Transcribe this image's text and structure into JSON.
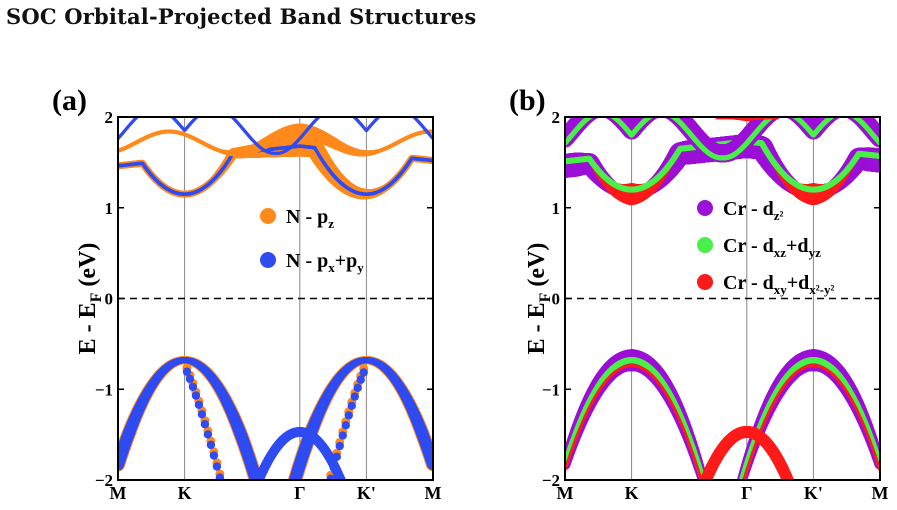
{
  "page": {
    "title": "SOC Orbital-Projected Band Structures"
  },
  "colors": {
    "orange": "#ff8a1c",
    "blue": "#2f4bf2",
    "purple": "#9c0fd6",
    "green": "#49f049",
    "red": "#ff1a1a"
  },
  "chart_data": [
    {
      "type": "scatter",
      "panel_label": "(a)",
      "xlabel": "",
      "ylabel": "E - E_F (eV)",
      "ylim": [
        -2,
        2
      ],
      "yticks": [
        "−2",
        "−1",
        "0",
        "1",
        "2"
      ],
      "kpoints": [
        "M",
        "K",
        "Γ",
        "K'",
        "M"
      ],
      "kpoint_positions": [
        0,
        1,
        2.73,
        3.73,
        4.73
      ],
      "fermi_level": 0,
      "legend_position": "center-right",
      "series": [
        {
          "name_main": "N - p",
          "name_sub": "z",
          "name_rest": "",
          "name_rest_sub": "",
          "color": "#ff8a1c"
        },
        {
          "name_main": "N - p",
          "name_sub": "x",
          "name_rest": "+p",
          "name_rest_sub": "y",
          "color": "#2f4bf2"
        }
      ]
    },
    {
      "type": "scatter",
      "panel_label": "(b)",
      "xlabel": "",
      "ylabel": "E - E_F (eV)",
      "ylim": [
        -2,
        2
      ],
      "yticks": [
        "−2",
        "−1",
        "0",
        "1",
        "2"
      ],
      "kpoints": [
        "M",
        "K",
        "Γ",
        "K'",
        "M"
      ],
      "kpoint_positions": [
        0,
        1,
        2.73,
        3.73,
        4.73
      ],
      "fermi_level": 0,
      "legend_position": "center-right",
      "series": [
        {
          "name_main": "Cr - d",
          "name_sub": "z²",
          "name_rest": "",
          "name_rest_sub": "",
          "color": "#9c0fd6"
        },
        {
          "name_main": "Cr - d",
          "name_sub": "xz",
          "name_rest": "+d",
          "name_rest_sub": "yz",
          "color": "#49f049"
        },
        {
          "name_main": "Cr - d",
          "name_sub": "xy",
          "name_rest": "+d",
          "name_rest_sub": "x²-y²",
          "color": "#ff1a1a"
        }
      ]
    }
  ]
}
